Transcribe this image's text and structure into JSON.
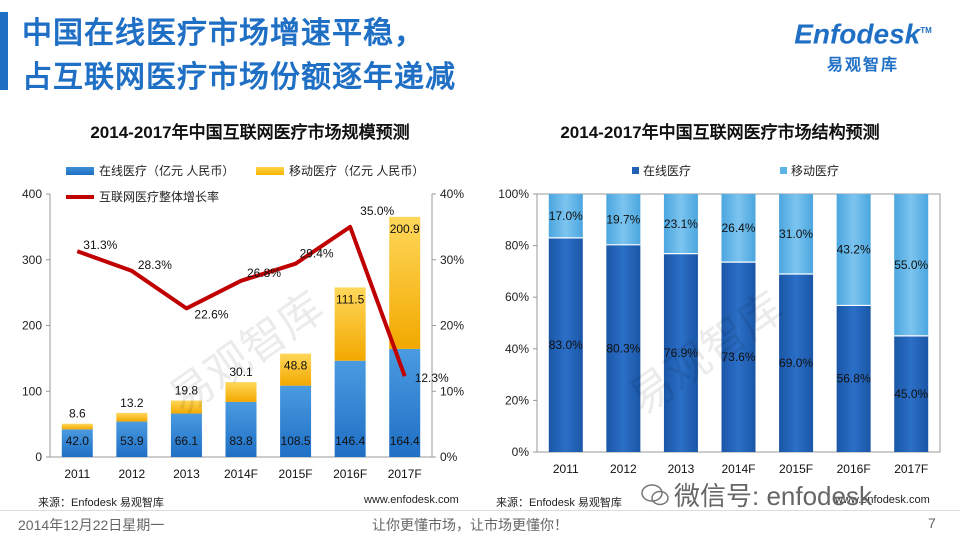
{
  "header": {
    "title_line1": "中国在线医疗市场增速平稳，",
    "title_line2": "占互联网医疗市场份额逐年递减"
  },
  "logo": {
    "brand": "Enfodesk",
    "tm": "TM",
    "sub": "易观智库"
  },
  "colors": {
    "blue": "#1f6fc5",
    "orange": "#f7b500",
    "red": "#c00000",
    "dark_blue": "#1f5fb4",
    "light_blue": "#5bb3e6"
  },
  "chart_data": [
    {
      "type": "bar",
      "title": "2014-2017年中国互联网医疗市场规模预测",
      "categories": [
        "2011",
        "2012",
        "2013",
        "2014F",
        "2015F",
        "2016F",
        "2017F"
      ],
      "series": [
        {
          "name": "在线医疗（亿元 人民币）",
          "values": [
            42.0,
            53.9,
            66.1,
            83.8,
            108.5,
            146.4,
            164.4
          ]
        },
        {
          "name": "移动医疗（亿元 人民币）",
          "values": [
            8.6,
            13.2,
            19.8,
            30.1,
            48.8,
            111.5,
            200.9
          ]
        }
      ],
      "line_series": {
        "name": "互联网医疗整体增长率",
        "values": [
          31.3,
          28.3,
          22.6,
          26.8,
          29.4,
          35.0,
          12.3
        ],
        "labels": [
          "31.3%",
          "28.3%",
          "22.6%",
          "26.8%",
          "29.4%",
          "35.0%",
          "12.3%"
        ]
      },
      "y_ticks": [
        "400",
        "300",
        "200",
        "100",
        "0"
      ],
      "y2_ticks": [
        "40%",
        "30%",
        "20%",
        "10%",
        "0%"
      ],
      "ylim": [
        0,
        400
      ],
      "y2lim": [
        0,
        40
      ]
    },
    {
      "type": "bar",
      "title": "2014-2017年中国互联网医疗市场结构预测",
      "categories": [
        "2011",
        "2012",
        "2013",
        "2014F",
        "2015F",
        "2016F",
        "2017F"
      ],
      "series": [
        {
          "name": "在线医疗",
          "values": [
            83.0,
            80.3,
            76.9,
            73.6,
            69.0,
            56.8,
            45.0
          ],
          "labels": [
            "83.0%",
            "80.3%",
            "76.9%",
            "73.6%",
            "69.0%",
            "56.8%",
            "45.0%"
          ]
        },
        {
          "name": "移动医疗",
          "values": [
            17.0,
            19.7,
            23.1,
            26.4,
            31.0,
            43.2,
            55.0
          ],
          "labels": [
            "17.0%",
            "19.7%",
            "23.1%",
            "26.4%",
            "31.0%",
            "43.2%",
            "55.0%"
          ]
        }
      ],
      "y_ticks": [
        "100%",
        "80%",
        "60%",
        "40%",
        "20%",
        "0%"
      ],
      "ylim": [
        0,
        100
      ]
    }
  ],
  "watermark": "易观智库",
  "sources": {
    "left_source": "来源：Enfodesk 易观智库",
    "left_site": "www.enfodesk.com",
    "right_source": "来源：Enfodesk 易观智库",
    "right_site": "www.enfodesk.com"
  },
  "wechat": "微信号: enfodesk",
  "footer": {
    "date": "2014年12月22日星期一",
    "slogan": "让你更懂市场，让市场更懂你！",
    "page": "7"
  }
}
